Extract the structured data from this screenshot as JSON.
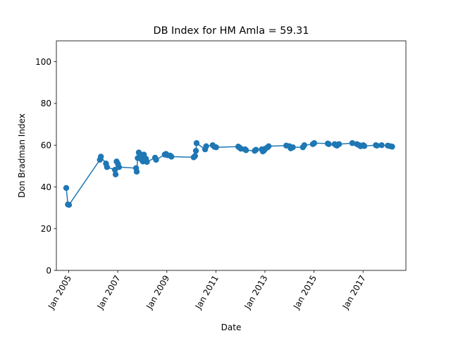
{
  "chart_data": {
    "type": "line",
    "title": "DB Index for HM Amla = 59.31",
    "xlabel": "Date",
    "ylabel": "Don Bradman Index",
    "ylim": [
      0,
      110
    ],
    "xlim": [
      "2004-07-01",
      "2018-10-01"
    ],
    "yticks": [
      0,
      20,
      40,
      60,
      80,
      100
    ],
    "xticks": [
      {
        "date": "2005-01-01",
        "label": "Jan 2005"
      },
      {
        "date": "2007-01-01",
        "label": "Jan 2007"
      },
      {
        "date": "2009-01-01",
        "label": "Jan 2009"
      },
      {
        "date": "2011-01-01",
        "label": "Jan 2011"
      },
      {
        "date": "2013-01-01",
        "label": "Jan 2013"
      },
      {
        "date": "2015-01-01",
        "label": "Jan 2015"
      },
      {
        "date": "2017-01-01",
        "label": "Jan 2017"
      }
    ],
    "grid": false,
    "line_color": "#1f77b4",
    "marker": "circle",
    "series": [
      {
        "points": [
          [
            "2004-11-25",
            39.5
          ],
          [
            "2004-12-20",
            31.6
          ],
          [
            "2005-01-05",
            31.4
          ],
          [
            "2006-04-10",
            53.0
          ],
          [
            "2006-04-25",
            54.5
          ],
          [
            "2006-07-10",
            51.2
          ],
          [
            "2006-07-25",
            49.5
          ],
          [
            "2006-11-20",
            48.2
          ],
          [
            "2006-11-30",
            46.0
          ],
          [
            "2006-12-15",
            52.2
          ],
          [
            "2007-01-05",
            51.0
          ],
          [
            "2007-01-20",
            49.5
          ],
          [
            "2007-10-01",
            49.0
          ],
          [
            "2007-10-10",
            47.3
          ],
          [
            "2007-10-25",
            53.8
          ],
          [
            "2007-11-10",
            56.5
          ],
          [
            "2007-11-25",
            55.8
          ],
          [
            "2007-12-10",
            54.2
          ],
          [
            "2007-12-25",
            53.0
          ],
          [
            "2008-01-10",
            52.2
          ],
          [
            "2008-01-25",
            55.5
          ],
          [
            "2008-02-10",
            52.5
          ],
          [
            "2008-02-25",
            53.5
          ],
          [
            "2008-03-10",
            52.0
          ],
          [
            "2008-07-10",
            54.0
          ],
          [
            "2008-07-25",
            53.0
          ],
          [
            "2008-12-01",
            55.5
          ],
          [
            "2008-12-20",
            55.8
          ],
          [
            "2009-01-10",
            55.2
          ],
          [
            "2009-02-20",
            55.0
          ],
          [
            "2009-03-10",
            54.5
          ],
          [
            "2010-02-05",
            54.2
          ],
          [
            "2010-02-25",
            54.8
          ],
          [
            "2010-03-10",
            57.3
          ],
          [
            "2010-03-20",
            61.0
          ],
          [
            "2010-07-25",
            58.0
          ],
          [
            "2010-08-10",
            59.5
          ],
          [
            "2010-11-15",
            60.0
          ],
          [
            "2010-12-10",
            59.2
          ],
          [
            "2011-01-05",
            59.0
          ],
          [
            "2011-12-01",
            59.3
          ],
          [
            "2011-12-20",
            58.8
          ],
          [
            "2012-01-10",
            58.3
          ],
          [
            "2012-03-10",
            58.0
          ],
          [
            "2012-03-25",
            57.6
          ],
          [
            "2012-08-01",
            57.3
          ],
          [
            "2012-08-20",
            57.8
          ],
          [
            "2012-11-15",
            58.0
          ],
          [
            "2012-12-01",
            57.0
          ],
          [
            "2012-12-20",
            57.5
          ],
          [
            "2013-01-05",
            58.3
          ],
          [
            "2013-02-10",
            59.0
          ],
          [
            "2013-02-25",
            59.5
          ],
          [
            "2013-11-15",
            59.8
          ],
          [
            "2014-01-01",
            59.5
          ],
          [
            "2014-01-20",
            58.5
          ],
          [
            "2014-02-20",
            59.0
          ],
          [
            "2014-07-20",
            59.0
          ],
          [
            "2014-08-10",
            60.0
          ],
          [
            "2014-12-15",
            60.5
          ],
          [
            "2015-01-05",
            61.0
          ],
          [
            "2015-07-25",
            60.8
          ],
          [
            "2015-08-10",
            60.5
          ],
          [
            "2015-11-05",
            60.5
          ],
          [
            "2015-11-25",
            60.0
          ],
          [
            "2015-12-10",
            59.8
          ],
          [
            "2015-12-25",
            60.3
          ],
          [
            "2016-01-10",
            60.5
          ],
          [
            "2016-07-25",
            61.0
          ],
          [
            "2016-10-01",
            60.5
          ],
          [
            "2016-11-05",
            60.0
          ],
          [
            "2016-11-25",
            59.5
          ],
          [
            "2017-01-05",
            60.0
          ],
          [
            "2017-01-20",
            59.6
          ],
          [
            "2017-07-10",
            60.0
          ],
          [
            "2017-07-25",
            59.8
          ],
          [
            "2017-10-05",
            60.0
          ],
          [
            "2018-01-05",
            59.8
          ],
          [
            "2018-02-10",
            59.5
          ],
          [
            "2018-03-10",
            59.3
          ]
        ]
      }
    ]
  }
}
